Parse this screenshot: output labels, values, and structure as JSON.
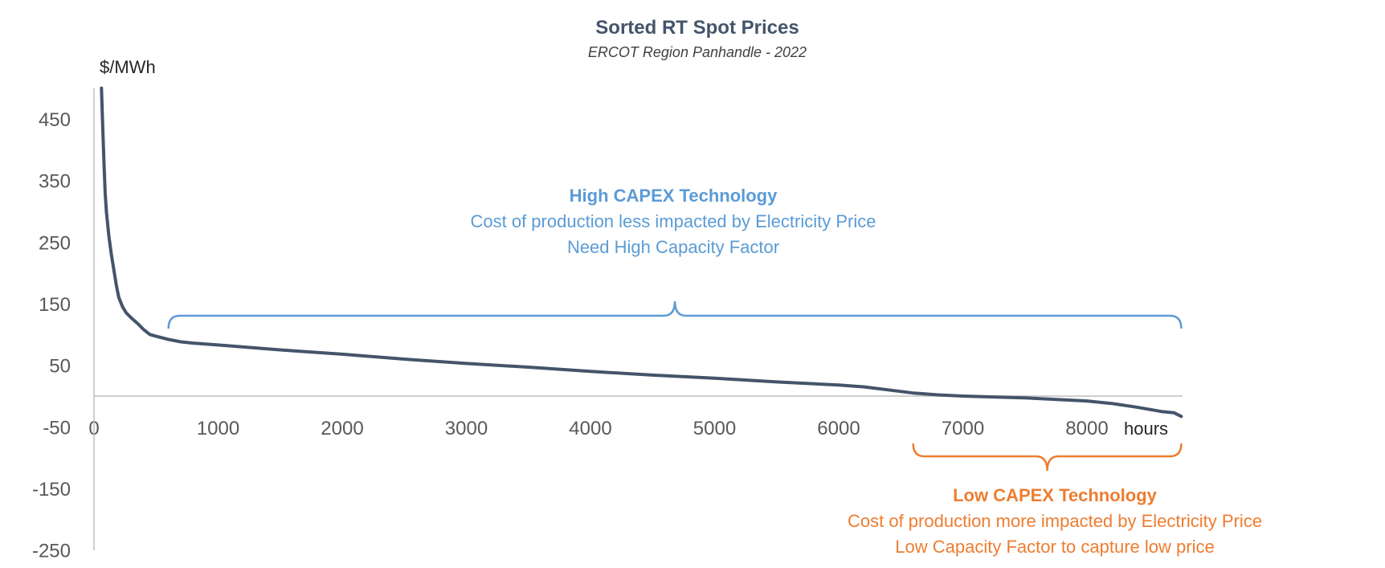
{
  "chart_data": {
    "type": "line",
    "title": "Sorted RT Spot Prices",
    "subtitle": "ERCOT Region Panhandle - 2022",
    "ylabel": "$/MWh",
    "xlabel": "hours",
    "ylim": [
      -250,
      500
    ],
    "xlim": [
      0,
      8760
    ],
    "y_ticks": [
      "450",
      "350",
      "250",
      "150",
      "50",
      "-50",
      "-150",
      "-250"
    ],
    "x_ticks": [
      "0",
      "1000",
      "2000",
      "3000",
      "4000",
      "5000",
      "6000",
      "7000",
      "8000"
    ],
    "series": [
      {
        "name": "Sorted RT Spot Price",
        "color": "#44546a",
        "x": [
          60,
          70,
          80,
          90,
          100,
          120,
          140,
          160,
          180,
          200,
          230,
          260,
          300,
          350,
          400,
          450,
          500,
          600,
          700,
          800,
          1000,
          1500,
          2000,
          2500,
          3000,
          3500,
          4000,
          4500,
          5000,
          5500,
          6000,
          6200,
          6400,
          6600,
          6800,
          7000,
          7500,
          8000,
          8200,
          8400,
          8600,
          8700,
          8760
        ],
        "values": [
          500,
          440,
          380,
          330,
          300,
          260,
          230,
          205,
          180,
          160,
          145,
          135,
          127,
          118,
          108,
          100,
          97,
          92,
          88,
          86,
          83,
          75,
          68,
          60,
          53,
          47,
          40,
          34,
          29,
          23,
          18,
          15,
          10,
          5,
          2,
          0,
          -3,
          -8,
          -12,
          -18,
          -25,
          -27,
          -33
        ]
      }
    ],
    "annotations": [
      {
        "id": "high",
        "title": "High CAPEX Technology",
        "lines": [
          "Cost of production less impacted by Electricity Price",
          "Need High Capacity Factor"
        ],
        "color": "#5b9bd5",
        "bracket_x_range": [
          600,
          8760
        ],
        "bracket_y": 128
      },
      {
        "id": "low",
        "title": "Low CAPEX Technology",
        "lines": [
          "Cost of production more impacted by Electricity Price",
          "Low Capacity Factor to capture low price"
        ],
        "color": "#ed7d31",
        "bracket_x_range": [
          6600,
          8760
        ],
        "bracket_y": -80
      }
    ]
  }
}
